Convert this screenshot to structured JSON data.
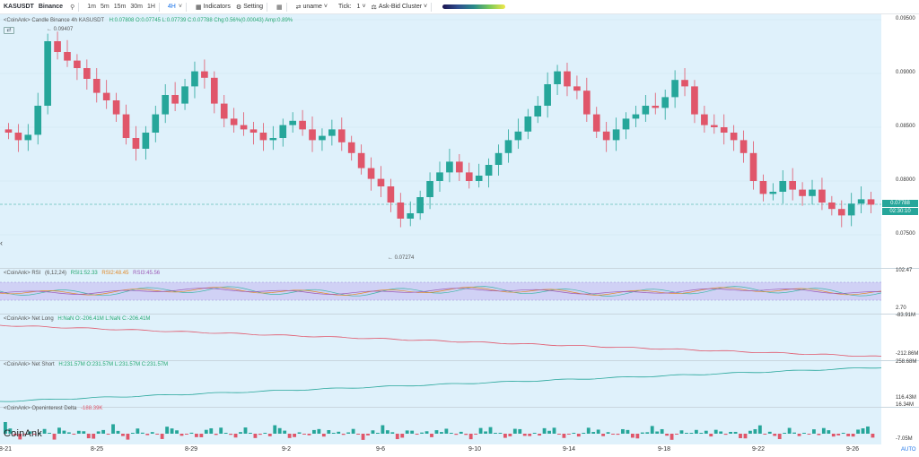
{
  "toolbar": {
    "symbol": "KASUSDT",
    "exchange": "Binance",
    "timeframes": [
      "1m",
      "5m",
      "15m",
      "30m",
      "1H",
      "4H"
    ],
    "active_timeframe": "4H",
    "indicators_label": "Indicators",
    "setting_label": "Setting",
    "uname_label": "uname",
    "tick_label": "Tick:",
    "tick_value": "1",
    "cluster_label": "Ask-Bid Cluster"
  },
  "main_pane": {
    "title_prefix": "<CoinAnk> Candle  Binance 4h KASUSDT",
    "stats": "H:0.07808  O:0.07745  L:0.07739  C:0.07788  Chg:0.56%(0.00043)  Amp:0.89%",
    "high_marker": "0.09407",
    "low_marker": "0.07274",
    "last_price": "0.07788",
    "countdown": "02:30:10"
  },
  "rsi_pane": {
    "title": "<CoinAnk> RSI",
    "params": "(6,12,24)",
    "rsi1": "RSI1:52.33",
    "rsi2": "RSI2:48.45",
    "rsi3": "RSI3:45.56"
  },
  "netlong_pane": {
    "title": "<CoinAnk> Net Long",
    "stats": "H:NaN  O:-206.41M  L:NaN  C:-206.41M"
  },
  "netshort_pane": {
    "title": "<CoinAnk> Net Short",
    "stats": "H:231.57M  O:231.57M  L:231.57M  C:231.57M"
  },
  "oi_pane": {
    "title": "<CoinAnk> Openinterest Delta",
    "value": "-188.39K"
  },
  "y_axis": {
    "main": [
      "0.09500",
      "0.09000",
      "0.08500",
      "0.08000",
      "0.07500"
    ],
    "rsi_top": "102.47",
    "rsi_bottom": "2.70",
    "netlong_top": "-83.91M",
    "netlong_bottom": "-212.86M",
    "netshort_top": "258.68M",
    "netshort_bottom": "116.43M",
    "oi_top": "16.34M",
    "oi_bottom": "-7.05M"
  },
  "x_axis": [
    "8-21",
    "8-25",
    "8-29",
    "9-2",
    "9-6",
    "9-10",
    "9-14",
    "9-18",
    "9-22",
    "9-26"
  ],
  "branding": {
    "logo": "CoinAnk",
    "auto": "AUTO"
  },
  "colors": {
    "up": "#26a69a",
    "down": "#e0566a",
    "pane_bg": "#dff1fb"
  },
  "chart_data": {
    "type": "candlestick",
    "price_range": [
      0.0712,
      0.0953
    ],
    "candle_closes_approx": [
      0.0845,
      0.0838,
      0.0843,
      0.087,
      0.093,
      0.092,
      0.0912,
      0.0905,
      0.0895,
      0.0882,
      0.0875,
      0.0862,
      0.084,
      0.083,
      0.0845,
      0.0862,
      0.088,
      0.0872,
      0.0888,
      0.0902,
      0.0896,
      0.0872,
      0.0858,
      0.0852,
      0.0848,
      0.0845,
      0.0838,
      0.084,
      0.0852,
      0.0856,
      0.0848,
      0.0838,
      0.0842,
      0.0848,
      0.0836,
      0.0826,
      0.0812,
      0.0802,
      0.0795,
      0.078,
      0.0765,
      0.077,
      0.0785,
      0.08,
      0.0808,
      0.0818,
      0.0808,
      0.08,
      0.0805,
      0.0815,
      0.0826,
      0.0838,
      0.0846,
      0.086,
      0.087,
      0.089,
      0.0902,
      0.0888,
      0.0884,
      0.0862,
      0.0846,
      0.0838,
      0.0848,
      0.0858,
      0.0862,
      0.087,
      0.0868,
      0.0878,
      0.0894,
      0.0888,
      0.0862,
      0.0852,
      0.085,
      0.0845,
      0.0838,
      0.0826,
      0.08,
      0.0788,
      0.079,
      0.08,
      0.0792,
      0.0786,
      0.0792,
      0.078,
      0.0774,
      0.0768,
      0.0779,
      0.0783,
      0.0778
    ]
  }
}
